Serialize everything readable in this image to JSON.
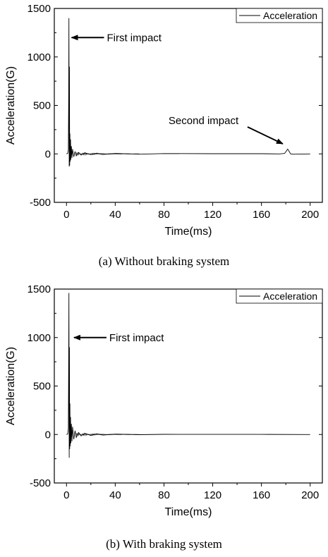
{
  "chart_data": [
    {
      "type": "line",
      "ylabel": "Acceleration(G)",
      "xlabel": "Time(ms)",
      "caption": "(a)  Without braking system",
      "xlim": [
        -10,
        210
      ],
      "ylim": [
        -500,
        1500
      ],
      "xticks": [
        "0",
        "40",
        "80",
        "120",
        "160",
        "200"
      ],
      "xtick_values": [
        0,
        40,
        80,
        120,
        160,
        200
      ],
      "yticks": [
        "-500",
        "0",
        "500",
        "1000",
        "1500"
      ],
      "ytick_values": [
        -500,
        0,
        500,
        1000,
        1500
      ],
      "legend": {
        "position": "top-right",
        "entries": [
          "Acceleration"
        ]
      },
      "series": [
        {
          "name": "Acceleration",
          "x": [
            0,
            1.0,
            1.5,
            1.8,
            2.0,
            2.2,
            2.4,
            2.6,
            2.8,
            3.0,
            3.3,
            3.6,
            4.0,
            4.5,
            5.0,
            6.0,
            7.0,
            8.0,
            10.0,
            12.0,
            15.0,
            20.0,
            25.0,
            30.0,
            40.0,
            60.0,
            80.0,
            120.0,
            160.0,
            175.0,
            179.0,
            180.5,
            181.5,
            182.5,
            184.0,
            186.0,
            200.0
          ],
          "y": [
            0,
            5,
            40,
            600,
            1400,
            -130,
            900,
            -120,
            210,
            -80,
            150,
            -60,
            80,
            -40,
            50,
            -30,
            25,
            -20,
            15,
            -12,
            10,
            -8,
            8,
            -6,
            5,
            -3,
            3,
            2,
            2,
            0,
            5,
            30,
            50,
            30,
            0,
            -3,
            0
          ]
        }
      ],
      "annotations": [
        {
          "text": "First impact",
          "x": 3,
          "y": 1200
        },
        {
          "text": "Second impact",
          "x": 181,
          "y": 60
        }
      ]
    },
    {
      "type": "line",
      "ylabel": "Acceleration(G)",
      "xlabel": "Time(ms)",
      "caption": "(b) With braking system",
      "xlim": [
        -10,
        210
      ],
      "ylim": [
        -500,
        1500
      ],
      "xticks": [
        "0",
        "40",
        "80",
        "120",
        "160",
        "200"
      ],
      "xtick_values": [
        0,
        40,
        80,
        120,
        160,
        200
      ],
      "yticks": [
        "-500",
        "0",
        "500",
        "1000",
        "1500"
      ],
      "ytick_values": [
        -500,
        0,
        500,
        1000,
        1500
      ],
      "legend": {
        "position": "top-right",
        "entries": [
          "Acceleration"
        ]
      },
      "series": [
        {
          "name": "Acceleration",
          "x": [
            0,
            1.0,
            1.5,
            1.8,
            2.0,
            2.2,
            2.4,
            2.6,
            2.8,
            3.0,
            3.3,
            3.6,
            4.0,
            4.5,
            5.0,
            6.0,
            7.0,
            8.0,
            10.0,
            12.0,
            15.0,
            20.0,
            25.0,
            30.0,
            40.0,
            60.0,
            80.0,
            120.0,
            160.0,
            200.0
          ],
          "y": [
            0,
            5,
            60,
            800,
            1460,
            -240,
            900,
            -150,
            320,
            -120,
            180,
            -90,
            110,
            -70,
            80,
            -50,
            40,
            -30,
            20,
            -15,
            12,
            -10,
            8,
            -6,
            4,
            -2,
            2,
            1,
            1,
            0
          ]
        }
      ],
      "annotations": [
        {
          "text": "First impact",
          "x": 5,
          "y": 1000
        }
      ]
    }
  ]
}
